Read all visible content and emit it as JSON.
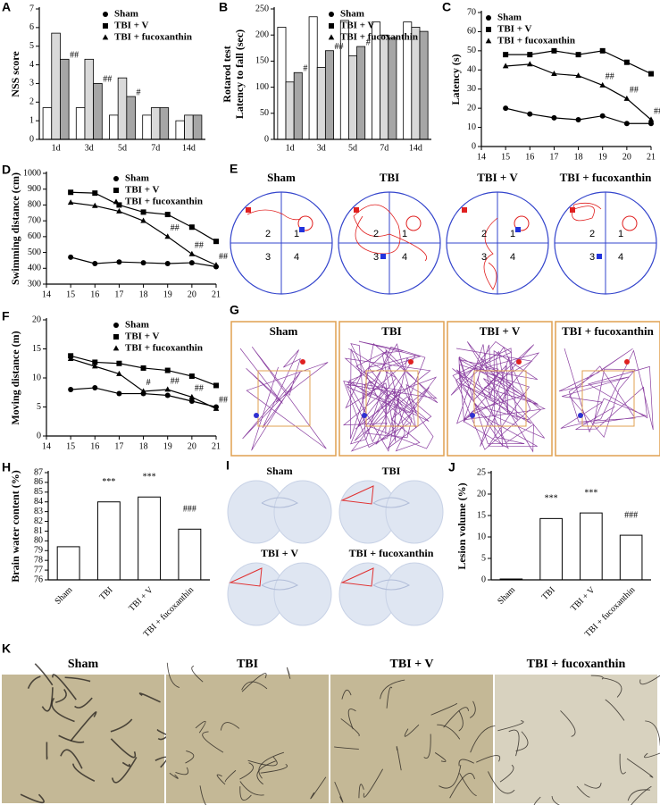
{
  "chart_data": [
    {
      "type": "bar",
      "panel": "A",
      "ylabel": "NSS score",
      "categories": [
        "1d",
        "3d",
        "5d",
        "7d",
        "14d"
      ],
      "series": [
        {
          "name": "Sham",
          "color": "#ffffff",
          "marker": "circle",
          "values": [
            1.7,
            1.7,
            1.3,
            1.3,
            1.0
          ]
        },
        {
          "name": "TBI + V",
          "color": "#d9d9d9",
          "marker": "square",
          "values": [
            5.7,
            4.3,
            3.3,
            1.7,
            1.3
          ]
        },
        {
          "name": "TBI + fucoxanthin",
          "color": "#a6a6a6",
          "marker": "triangle",
          "values": [
            4.3,
            3.0,
            2.3,
            1.7,
            1.3
          ]
        }
      ],
      "ylim": [
        0,
        7
      ],
      "yticks": [
        0,
        1,
        2,
        3,
        4,
        5,
        6,
        7
      ],
      "legend": "upper right",
      "annotations": [
        {
          "category": "1d",
          "text": "##"
        },
        {
          "category": "3d",
          "text": "##"
        },
        {
          "category": "5d",
          "text": "#"
        }
      ]
    },
    {
      "type": "bar",
      "panel": "B",
      "ylabel": [
        "Rotarod test",
        "Latency to fall (sec)"
      ],
      "categories": [
        "1d",
        "3d",
        "5d",
        "7d",
        "14d"
      ],
      "series": [
        {
          "name": "Sham",
          "color": "#ffffff",
          "marker": "circle",
          "values": [
            215,
            235,
            228,
            225,
            225
          ]
        },
        {
          "name": "TBI + V",
          "color": "#d9d9d9",
          "marker": "square",
          "values": [
            110,
            138,
            160,
            200,
            215
          ]
        },
        {
          "name": "TBI + fucoxanthin",
          "color": "#a6a6a6",
          "marker": "triangle",
          "values": [
            128,
            170,
            178,
            195,
            207
          ]
        }
      ],
      "ylim": [
        0,
        250
      ],
      "yticks": [
        0,
        50,
        100,
        150,
        200,
        250
      ],
      "legend": "upper right",
      "annotations": [
        {
          "category": "1d",
          "text": "#"
        },
        {
          "category": "3d",
          "text": "##"
        },
        {
          "category": "5d",
          "text": "#"
        }
      ]
    },
    {
      "type": "line",
      "panel": "C",
      "ylabel": "Latency (s)",
      "x": [
        15,
        16,
        17,
        18,
        19,
        20,
        21
      ],
      "series": [
        {
          "name": "Sham",
          "color": "#000000",
          "marker": "circle",
          "values": [
            20,
            17,
            15,
            14,
            16,
            12,
            12
          ]
        },
        {
          "name": "TBI + V",
          "color": "#000000",
          "marker": "square",
          "values": [
            48,
            48,
            50,
            48,
            50,
            44,
            38
          ]
        },
        {
          "name": "TBI + fucoxanthin",
          "color": "#000000",
          "marker": "triangle",
          "values": [
            42,
            43,
            38,
            37,
            32,
            25,
            14
          ]
        }
      ],
      "xlim": [
        14,
        21
      ],
      "xticks": [
        14,
        15,
        16,
        17,
        18,
        19,
        20,
        21
      ],
      "ylim": [
        0,
        70
      ],
      "yticks": [
        0,
        10,
        20,
        30,
        40,
        50,
        60,
        70
      ],
      "legend": "upper left",
      "annotations": [
        {
          "x": 19,
          "text": "##"
        },
        {
          "x": 20,
          "text": "##"
        },
        {
          "x": 21,
          "text": "##"
        }
      ]
    },
    {
      "type": "line",
      "panel": "D",
      "ylabel": "Swimming distance (cm)",
      "x": [
        15,
        16,
        17,
        18,
        19,
        20,
        21
      ],
      "series": [
        {
          "name": "Sham",
          "color": "#000000",
          "marker": "circle",
          "values": [
            470,
            430,
            440,
            435,
            430,
            435,
            410
          ]
        },
        {
          "name": "TBI + V",
          "color": "#000000",
          "marker": "square",
          "values": [
            880,
            875,
            800,
            755,
            740,
            660,
            570
          ]
        },
        {
          "name": "TBI + fucoxanthin",
          "color": "#000000",
          "marker": "triangle",
          "values": [
            815,
            795,
            760,
            700,
            600,
            490,
            420
          ]
        }
      ],
      "xlim": [
        14,
        21
      ],
      "xticks": [
        14,
        15,
        16,
        17,
        18,
        19,
        20,
        21
      ],
      "ylim": [
        300,
        1000
      ],
      "yticks": [
        300,
        400,
        500,
        600,
        700,
        800,
        900,
        1000
      ],
      "legend": "upper right",
      "annotations": [
        {
          "x": 19,
          "text": "##"
        },
        {
          "x": 20,
          "text": "##"
        },
        {
          "x": 21,
          "text": "##"
        }
      ]
    },
    {
      "type": "line",
      "panel": "F",
      "ylabel": "Moving distance (m)",
      "x": [
        15,
        16,
        17,
        18,
        19,
        20,
        21
      ],
      "series": [
        {
          "name": "Sham",
          "color": "#000000",
          "marker": "circle",
          "values": [
            8,
            8.3,
            7.3,
            7.3,
            7,
            6,
            5
          ]
        },
        {
          "name": "TBI + V",
          "color": "#000000",
          "marker": "square",
          "values": [
            13.8,
            12.7,
            12.5,
            11.7,
            11.3,
            10.3,
            8.7
          ]
        },
        {
          "name": "TBI + fucoxanthin",
          "color": "#000000",
          "marker": "triangle",
          "values": [
            13.3,
            12,
            10.7,
            7.7,
            8,
            6.7,
            4.7
          ]
        }
      ],
      "xlim": [
        14,
        21
      ],
      "xticks": [
        14,
        15,
        16,
        17,
        18,
        19,
        20,
        21
      ],
      "ylim": [
        0,
        20
      ],
      "yticks": [
        0,
        5,
        10,
        15,
        20
      ],
      "legend": "upper right",
      "annotations": [
        {
          "x": 18,
          "text": "#"
        },
        {
          "x": 19,
          "text": "##"
        },
        {
          "x": 20,
          "text": "##"
        },
        {
          "x": 21,
          "text": "##"
        }
      ]
    },
    {
      "type": "bar",
      "panel": "H",
      "ylabel": "Brain water content (%)",
      "categories": [
        "Sham",
        "TBI",
        "TBI + V",
        "TBI + fucoxanthin"
      ],
      "values": [
        79.4,
        84.0,
        84.5,
        81.2
      ],
      "color": "#ffffff",
      "ylim": [
        76,
        87
      ],
      "yticks": [
        76,
        77,
        78,
        79,
        80,
        81,
        82,
        83,
        84,
        85,
        86,
        87
      ],
      "annotations": [
        {
          "category": "TBI",
          "text": "***"
        },
        {
          "category": "TBI + V",
          "text": "***"
        },
        {
          "category": "TBI + fucoxanthin",
          "text": "###"
        }
      ]
    },
    {
      "type": "bar",
      "panel": "J",
      "ylabel": "Lesion volume (%)",
      "categories": [
        "Sham",
        "TBI",
        "TBI + V",
        "TBI + fucoxanthin"
      ],
      "values": [
        0.2,
        14.3,
        15.6,
        10.4
      ],
      "color": "#ffffff",
      "ylim": [
        0,
        25
      ],
      "yticks": [
        0,
        5,
        10,
        15,
        20,
        25
      ],
      "annotations": [
        {
          "category": "TBI",
          "text": "***"
        },
        {
          "category": "TBI + V",
          "text": "***"
        },
        {
          "category": "TBI + fucoxanthin",
          "text": "###"
        }
      ]
    }
  ],
  "image_panels": [
    {
      "panel": "E",
      "captions": [
        "Sham",
        "TBI",
        "TBI + V",
        "TBI + fucoxanthin"
      ],
      "quadrants": [
        "1",
        "2",
        "3",
        "4"
      ]
    },
    {
      "panel": "G",
      "captions": [
        "Sham",
        "TBI",
        "TBI + V",
        "TBI + fucoxanthin"
      ]
    },
    {
      "panel": "I",
      "captions": [
        "Sham",
        "TBI",
        "TBI + V",
        "TBI + fucoxanthin"
      ]
    },
    {
      "panel": "K",
      "captions": [
        "Sham",
        "TBI",
        "TBI + V",
        "TBI + fucoxanthin"
      ]
    }
  ]
}
